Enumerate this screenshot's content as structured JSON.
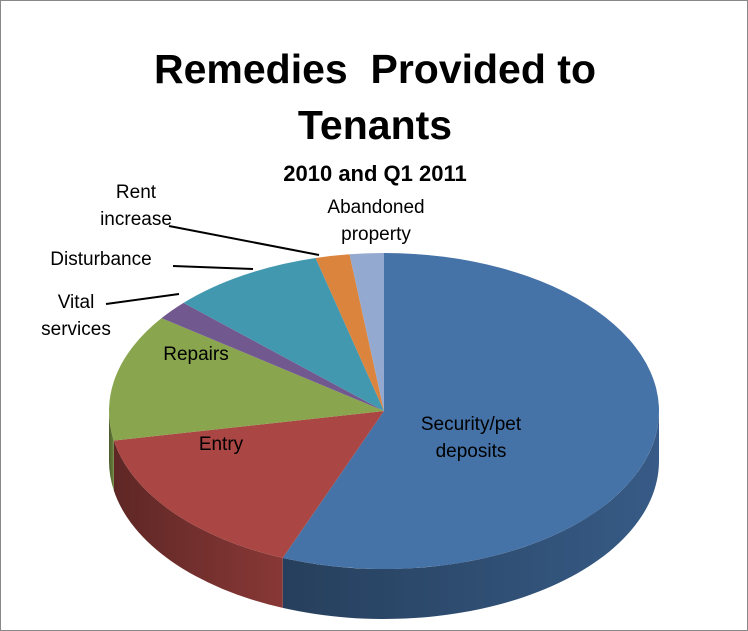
{
  "chart_data": {
    "type": "pie",
    "title": "Remedies  Provided to Tenants",
    "subtitle": "2010 and Q1 2011",
    "categories": [
      "Security/pet deposits",
      "Entry",
      "Repairs",
      "Vital services",
      "Disturbance",
      "Rent increase",
      "Abandoned property"
    ],
    "values": [
      56,
      16,
      13,
      2,
      9,
      2,
      2
    ],
    "colors": [
      "#4572a7",
      "#aa4643",
      "#89a54e",
      "#71588f",
      "#4198af",
      "#db843d",
      "#93a9cf"
    ]
  }
}
